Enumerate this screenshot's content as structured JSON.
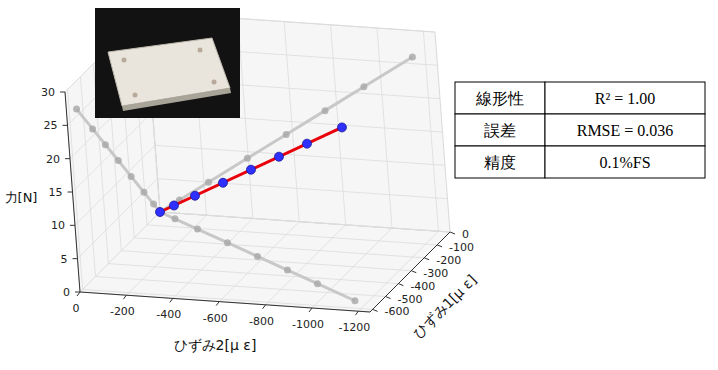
{
  "chart_data": {
    "type": "scatter3d",
    "xlabel": "ひずみ2[μ ε]",
    "ylabel": "ひずみ1[μ ε]",
    "zlabel": "力[N]",
    "xlim": [
      0,
      -1250
    ],
    "xticks": [
      0,
      -200,
      -400,
      -600,
      -800,
      -1000,
      -1200
    ],
    "ylim": [
      0,
      -620
    ],
    "yticks": [
      0,
      -100,
      -200,
      -300,
      -400,
      -500,
      -600
    ],
    "zlim": [
      0,
      30
    ],
    "zticks": [
      0,
      5,
      10,
      15,
      20,
      25,
      30
    ],
    "grid": true,
    "series": [
      {
        "type": "scatter",
        "color": "#2f2fff",
        "marker": "circle",
        "x": [
          0,
          -88,
          -220,
          -396,
          -572,
          -748,
          -924,
          -1144
        ],
        "y": [
          0,
          -42,
          -105,
          -189,
          -273,
          -357,
          -441,
          -546
        ],
        "z": [
          0,
          2,
          5,
          9,
          13,
          17,
          21,
          26
        ]
      },
      {
        "type": "line",
        "color": "#e8000b",
        "line_style": "solid",
        "x": [
          0,
          -1144
        ],
        "y": [
          0,
          -546
        ],
        "z": [
          0,
          26
        ]
      }
    ]
  },
  "table": {
    "rows": [
      [
        "線形性",
        "R² = 1.00"
      ],
      [
        "誤差",
        "RMSE = 0.036"
      ],
      [
        "精度",
        "0.1%FS"
      ]
    ]
  }
}
